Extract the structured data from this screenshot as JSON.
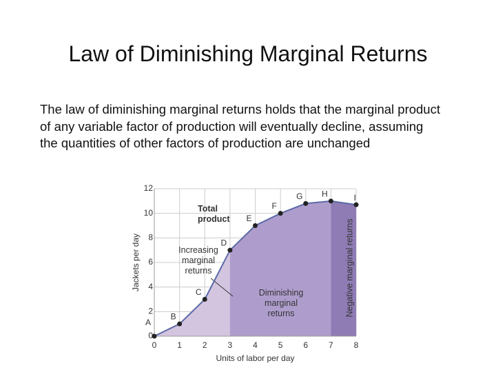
{
  "slide": {
    "title": "Law of Diminishing Marginal Returns",
    "body": "The law of diminishing marginal returns holds that the marginal product of any variable factor of production will eventually decline, assuming the quantities of other factors of production are unchanged"
  },
  "chart_data": {
    "type": "line",
    "x": [
      0,
      1,
      2,
      3,
      4,
      5,
      6,
      7,
      8
    ],
    "series": [
      {
        "name": "Total product",
        "color": "#5b69a6",
        "values": [
          0,
          1,
          3,
          7,
          9,
          10,
          10.8,
          11,
          10.7
        ],
        "point_labels": [
          "A",
          "B",
          "C",
          "D",
          "E",
          "F",
          "G",
          "H",
          "I"
        ]
      }
    ],
    "regions": [
      {
        "label": "Increasing marginal returns",
        "from": 0,
        "to": 3,
        "color": "#d3c5e0"
      },
      {
        "label": "Diminishing marginal returns",
        "from": 3,
        "to": 7,
        "color": "#ae9dcc"
      },
      {
        "label": "Negative marginal returns",
        "from": 7,
        "to": 8,
        "color": "#8f7cb5"
      }
    ],
    "xlabel": "Units of labor per day",
    "ylabel": "Jackets per day",
    "xlim": [
      0,
      8
    ],
    "ylim": [
      0,
      12
    ],
    "xticks": [
      0,
      1,
      2,
      3,
      4,
      5,
      6,
      7,
      8
    ],
    "yticks": [
      0,
      2,
      4,
      6,
      8,
      10,
      12
    ],
    "grid": true
  }
}
